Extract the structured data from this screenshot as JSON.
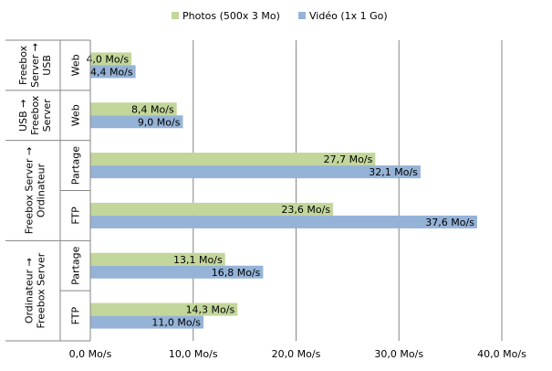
{
  "chart_data": {
    "type": "bar",
    "orientation": "horizontal",
    "title": "",
    "xlabel": "",
    "ylabel": "",
    "xlim": [
      0,
      40
    ],
    "x_ticks": [
      0,
      10,
      20,
      30,
      40
    ],
    "x_tick_labels": [
      "0,0 Mo/s",
      "10,0 Mo/s",
      "20,0 Mo/s",
      "30,0 Mo/s",
      "40,0 Mo/s"
    ],
    "grid": true,
    "legend_position": "top",
    "groups": [
      {
        "label": "Freebox Server → USB",
        "categories": [
          "Web"
        ]
      },
      {
        "label": "USB → Freebox Server",
        "categories": [
          "Web"
        ]
      },
      {
        "label": "Freebox Server → Ordinateur",
        "categories": [
          "Partage",
          "FTP"
        ]
      },
      {
        "label": "Ordinateur → Freebox Server",
        "categories": [
          "Partage",
          "FTP"
        ]
      }
    ],
    "series": [
      {
        "name": "Photos (500x 3 Mo)",
        "color": "#c3d69b",
        "values": [
          4.0,
          8.4,
          27.7,
          23.6,
          13.1,
          14.3
        ],
        "value_labels": [
          "4,0 Mo/s",
          "8,4 Mo/s",
          "27,7 Mo/s",
          "23,6 Mo/s",
          "13,1 Mo/s",
          "14,3 Mo/s"
        ]
      },
      {
        "name": "Vidéo (1x 1 Go)",
        "color": "#95b3d7",
        "values": [
          4.4,
          9.0,
          32.1,
          37.6,
          16.8,
          11.0
        ],
        "value_labels": [
          "4,4 Mo/s",
          "9,0 Mo/s",
          "32,1 Mo/s",
          "37,6 Mo/s",
          "16,8 Mo/s",
          "11,0 Mo/s"
        ]
      }
    ]
  }
}
